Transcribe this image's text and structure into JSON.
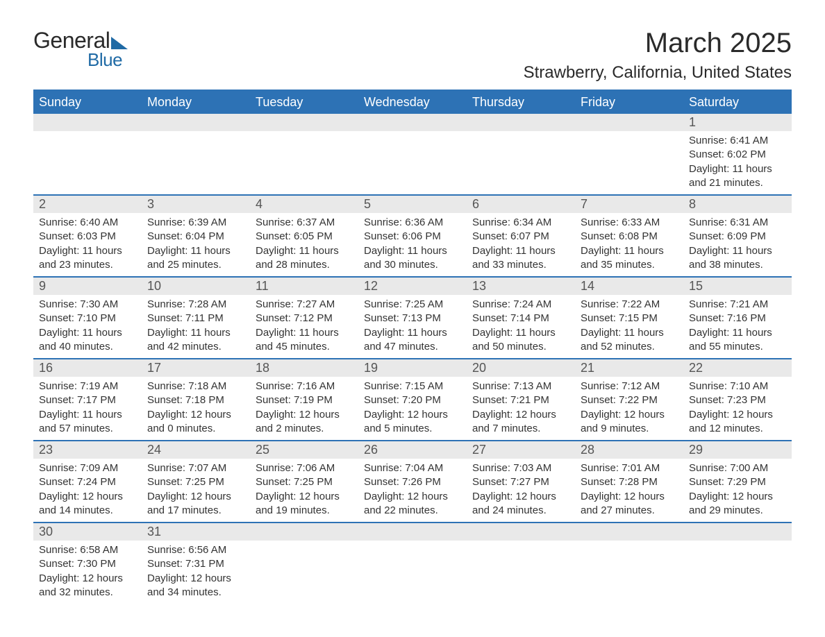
{
  "logo": {
    "word1": "General",
    "word2": "Blue",
    "accent_color": "#1f6aa5"
  },
  "title": "March 2025",
  "location": "Strawberry, California, United States",
  "colors": {
    "header_bg": "#2d72b5",
    "header_text": "#ffffff",
    "daynum_bg": "#e9e9e9",
    "daynum_text": "#555555",
    "body_text": "#333333",
    "row_divider": "#2d72b5",
    "page_bg": "#ffffff"
  },
  "typography": {
    "title_fontsize": 40,
    "location_fontsize": 24,
    "dow_fontsize": 18,
    "daynum_fontsize": 18,
    "body_fontsize": 15
  },
  "day_names": [
    "Sunday",
    "Monday",
    "Tuesday",
    "Wednesday",
    "Thursday",
    "Friday",
    "Saturday"
  ],
  "weeks": [
    [
      null,
      null,
      null,
      null,
      null,
      null,
      {
        "n": "1",
        "sunrise": "Sunrise: 6:41 AM",
        "sunset": "Sunset: 6:02 PM",
        "dl1": "Daylight: 11 hours",
        "dl2": "and 21 minutes."
      }
    ],
    [
      {
        "n": "2",
        "sunrise": "Sunrise: 6:40 AM",
        "sunset": "Sunset: 6:03 PM",
        "dl1": "Daylight: 11 hours",
        "dl2": "and 23 minutes."
      },
      {
        "n": "3",
        "sunrise": "Sunrise: 6:39 AM",
        "sunset": "Sunset: 6:04 PM",
        "dl1": "Daylight: 11 hours",
        "dl2": "and 25 minutes."
      },
      {
        "n": "4",
        "sunrise": "Sunrise: 6:37 AM",
        "sunset": "Sunset: 6:05 PM",
        "dl1": "Daylight: 11 hours",
        "dl2": "and 28 minutes."
      },
      {
        "n": "5",
        "sunrise": "Sunrise: 6:36 AM",
        "sunset": "Sunset: 6:06 PM",
        "dl1": "Daylight: 11 hours",
        "dl2": "and 30 minutes."
      },
      {
        "n": "6",
        "sunrise": "Sunrise: 6:34 AM",
        "sunset": "Sunset: 6:07 PM",
        "dl1": "Daylight: 11 hours",
        "dl2": "and 33 minutes."
      },
      {
        "n": "7",
        "sunrise": "Sunrise: 6:33 AM",
        "sunset": "Sunset: 6:08 PM",
        "dl1": "Daylight: 11 hours",
        "dl2": "and 35 minutes."
      },
      {
        "n": "8",
        "sunrise": "Sunrise: 6:31 AM",
        "sunset": "Sunset: 6:09 PM",
        "dl1": "Daylight: 11 hours",
        "dl2": "and 38 minutes."
      }
    ],
    [
      {
        "n": "9",
        "sunrise": "Sunrise: 7:30 AM",
        "sunset": "Sunset: 7:10 PM",
        "dl1": "Daylight: 11 hours",
        "dl2": "and 40 minutes."
      },
      {
        "n": "10",
        "sunrise": "Sunrise: 7:28 AM",
        "sunset": "Sunset: 7:11 PM",
        "dl1": "Daylight: 11 hours",
        "dl2": "and 42 minutes."
      },
      {
        "n": "11",
        "sunrise": "Sunrise: 7:27 AM",
        "sunset": "Sunset: 7:12 PM",
        "dl1": "Daylight: 11 hours",
        "dl2": "and 45 minutes."
      },
      {
        "n": "12",
        "sunrise": "Sunrise: 7:25 AM",
        "sunset": "Sunset: 7:13 PM",
        "dl1": "Daylight: 11 hours",
        "dl2": "and 47 minutes."
      },
      {
        "n": "13",
        "sunrise": "Sunrise: 7:24 AM",
        "sunset": "Sunset: 7:14 PM",
        "dl1": "Daylight: 11 hours",
        "dl2": "and 50 minutes."
      },
      {
        "n": "14",
        "sunrise": "Sunrise: 7:22 AM",
        "sunset": "Sunset: 7:15 PM",
        "dl1": "Daylight: 11 hours",
        "dl2": "and 52 minutes."
      },
      {
        "n": "15",
        "sunrise": "Sunrise: 7:21 AM",
        "sunset": "Sunset: 7:16 PM",
        "dl1": "Daylight: 11 hours",
        "dl2": "and 55 minutes."
      }
    ],
    [
      {
        "n": "16",
        "sunrise": "Sunrise: 7:19 AM",
        "sunset": "Sunset: 7:17 PM",
        "dl1": "Daylight: 11 hours",
        "dl2": "and 57 minutes."
      },
      {
        "n": "17",
        "sunrise": "Sunrise: 7:18 AM",
        "sunset": "Sunset: 7:18 PM",
        "dl1": "Daylight: 12 hours",
        "dl2": "and 0 minutes."
      },
      {
        "n": "18",
        "sunrise": "Sunrise: 7:16 AM",
        "sunset": "Sunset: 7:19 PM",
        "dl1": "Daylight: 12 hours",
        "dl2": "and 2 minutes."
      },
      {
        "n": "19",
        "sunrise": "Sunrise: 7:15 AM",
        "sunset": "Sunset: 7:20 PM",
        "dl1": "Daylight: 12 hours",
        "dl2": "and 5 minutes."
      },
      {
        "n": "20",
        "sunrise": "Sunrise: 7:13 AM",
        "sunset": "Sunset: 7:21 PM",
        "dl1": "Daylight: 12 hours",
        "dl2": "and 7 minutes."
      },
      {
        "n": "21",
        "sunrise": "Sunrise: 7:12 AM",
        "sunset": "Sunset: 7:22 PM",
        "dl1": "Daylight: 12 hours",
        "dl2": "and 9 minutes."
      },
      {
        "n": "22",
        "sunrise": "Sunrise: 7:10 AM",
        "sunset": "Sunset: 7:23 PM",
        "dl1": "Daylight: 12 hours",
        "dl2": "and 12 minutes."
      }
    ],
    [
      {
        "n": "23",
        "sunrise": "Sunrise: 7:09 AM",
        "sunset": "Sunset: 7:24 PM",
        "dl1": "Daylight: 12 hours",
        "dl2": "and 14 minutes."
      },
      {
        "n": "24",
        "sunrise": "Sunrise: 7:07 AM",
        "sunset": "Sunset: 7:25 PM",
        "dl1": "Daylight: 12 hours",
        "dl2": "and 17 minutes."
      },
      {
        "n": "25",
        "sunrise": "Sunrise: 7:06 AM",
        "sunset": "Sunset: 7:25 PM",
        "dl1": "Daylight: 12 hours",
        "dl2": "and 19 minutes."
      },
      {
        "n": "26",
        "sunrise": "Sunrise: 7:04 AM",
        "sunset": "Sunset: 7:26 PM",
        "dl1": "Daylight: 12 hours",
        "dl2": "and 22 minutes."
      },
      {
        "n": "27",
        "sunrise": "Sunrise: 7:03 AM",
        "sunset": "Sunset: 7:27 PM",
        "dl1": "Daylight: 12 hours",
        "dl2": "and 24 minutes."
      },
      {
        "n": "28",
        "sunrise": "Sunrise: 7:01 AM",
        "sunset": "Sunset: 7:28 PM",
        "dl1": "Daylight: 12 hours",
        "dl2": "and 27 minutes."
      },
      {
        "n": "29",
        "sunrise": "Sunrise: 7:00 AM",
        "sunset": "Sunset: 7:29 PM",
        "dl1": "Daylight: 12 hours",
        "dl2": "and 29 minutes."
      }
    ],
    [
      {
        "n": "30",
        "sunrise": "Sunrise: 6:58 AM",
        "sunset": "Sunset: 7:30 PM",
        "dl1": "Daylight: 12 hours",
        "dl2": "and 32 minutes."
      },
      {
        "n": "31",
        "sunrise": "Sunrise: 6:56 AM",
        "sunset": "Sunset: 7:31 PM",
        "dl1": "Daylight: 12 hours",
        "dl2": "and 34 minutes."
      },
      null,
      null,
      null,
      null,
      null
    ]
  ]
}
